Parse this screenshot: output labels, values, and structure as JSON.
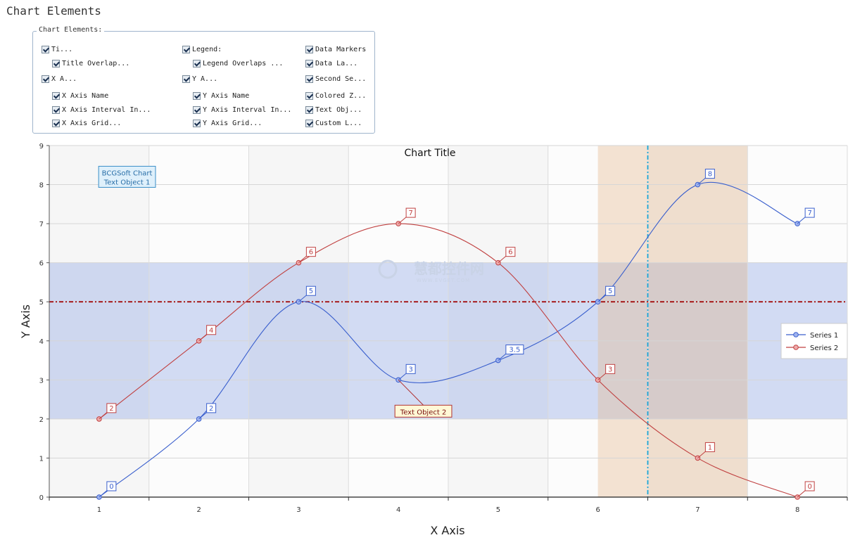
{
  "heading": "Chart Elements",
  "options": {
    "legend": "Chart Elements:",
    "items": [
      {
        "label": "Ti...",
        "checked": true
      },
      {
        "label": "Title Overlap...",
        "checked": true
      },
      {
        "label": "X A...",
        "checked": true
      },
      {
        "label": "X Axis Name",
        "checked": true
      },
      {
        "label": "X Axis Interval In...",
        "checked": true
      },
      {
        "label": "X Axis Grid...",
        "checked": true
      },
      {
        "label": "Legend:",
        "checked": true
      },
      {
        "label": "Legend Overlaps ...",
        "checked": true
      },
      {
        "label": "Y A...",
        "checked": true
      },
      {
        "label": "Y Axis Name",
        "checked": true
      },
      {
        "label": "Y Axis Interval In...",
        "checked": true
      },
      {
        "label": "Y Axis Grid...",
        "checked": true
      },
      {
        "label": "Data Markers",
        "checked": true
      },
      {
        "label": "Data La...",
        "checked": true
      },
      {
        "label": "Second Se...",
        "checked": true
      },
      {
        "label": "Colored Z...",
        "checked": true
      },
      {
        "label": "Text Obj...",
        "checked": true
      },
      {
        "label": "Custom L...",
        "checked": true
      }
    ]
  },
  "watermark": {
    "text": "慧都控件网",
    "sub": "WWW.EVGET.COM"
  },
  "chart_data": {
    "type": "line",
    "title": "Chart Title",
    "xlabel": "X Axis",
    "ylabel": "Y Axis",
    "x": [
      1,
      2,
      3,
      4,
      5,
      6,
      7,
      8
    ],
    "xlim": [
      0,
      8
    ],
    "ylim": [
      0,
      9
    ],
    "yticks": [
      0,
      1,
      2,
      3,
      4,
      5,
      6,
      7,
      8,
      9
    ],
    "grid": true,
    "smooth": true,
    "series": [
      {
        "name": "Series 1",
        "values": [
          0,
          2,
          5,
          3,
          3.5,
          5,
          8,
          7
        ],
        "color": "#3a5fcd",
        "labels": [
          "0",
          "2",
          "5",
          "3",
          "3.5",
          "5",
          "8",
          "7"
        ]
      },
      {
        "name": "Series 2",
        "values": [
          2,
          4,
          6,
          7,
          6,
          3,
          1,
          0
        ],
        "color": "#c04040",
        "labels": [
          "2",
          "4",
          "6",
          "7",
          "6",
          "3",
          "1",
          "0"
        ]
      }
    ],
    "legend": {
      "position": "right"
    },
    "y_band": {
      "from": 2,
      "to": 6,
      "color": "#8fa6e6"
    },
    "x_band": {
      "from": 6,
      "to": 7.5,
      "color": "#e5b98f"
    },
    "h_line": {
      "value": 5,
      "color": "#a00000"
    },
    "v_line": {
      "value": 6.5,
      "color": "#1aa6d9"
    },
    "text_objects": [
      {
        "text": "BCGSoft Chart\nText Object 1",
        "x": 1.28,
        "y": 8.2,
        "style": "blue"
      },
      {
        "text": "Text Object 2",
        "x": 4.25,
        "y": 2.2,
        "anchor_x": 4,
        "anchor_y": 3,
        "style": "yellow"
      }
    ]
  }
}
